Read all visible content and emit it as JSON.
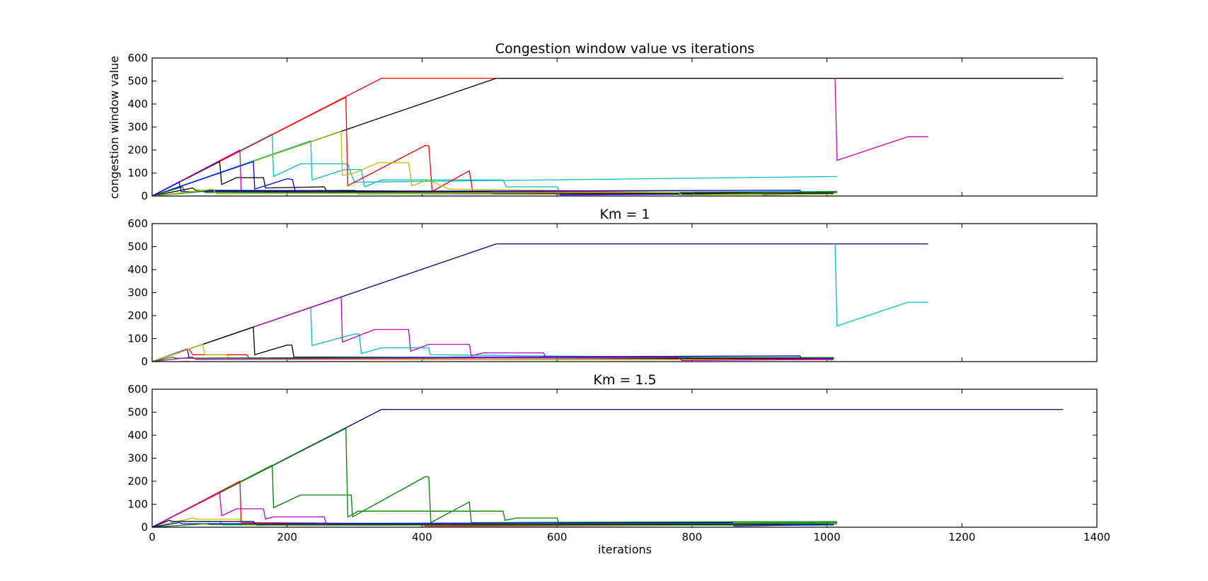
{
  "chart_data": [
    {
      "type": "line",
      "title": "Congestion window value vs iterations",
      "xlabel": "",
      "ylabel": "congestion window value",
      "xlim": [
        0,
        1400
      ],
      "ylim": [
        0,
        600
      ],
      "xticks": [],
      "yticks": [
        0,
        100,
        200,
        300,
        400,
        500,
        600
      ],
      "grid": false,
      "series": [
        {
          "color": "#ff0000",
          "points": [
            [
              0,
              0
            ],
            [
              340,
              512
            ],
            [
              1350,
              512
            ]
          ]
        },
        {
          "color": "#000000",
          "points": [
            [
              0,
              0
            ],
            [
              510,
              512
            ],
            [
              1350,
              512
            ]
          ]
        },
        {
          "color": "#c000c0",
          "points": [
            [
              1010,
              512
            ],
            [
              1012,
              512
            ],
            [
              1015,
              155
            ],
            [
              1120,
              258
            ],
            [
              1150,
              258
            ]
          ]
        },
        {
          "color": "#00bfbf",
          "points": [
            [
              0,
              0
            ],
            [
              178,
              270
            ],
            [
              180,
              85
            ],
            [
              220,
              140
            ],
            [
              290,
              140
            ],
            [
              295,
              95
            ],
            [
              300,
              60
            ],
            [
              1015,
              85
            ]
          ]
        },
        {
          "color": "#00bfbf",
          "points": [
            [
              0,
              0
            ],
            [
              235,
              240
            ],
            [
              237,
              70
            ],
            [
              285,
              115
            ],
            [
              310,
              115
            ],
            [
              315,
              40
            ],
            [
              340,
              70
            ],
            [
              520,
              70
            ],
            [
              525,
              40
            ],
            [
              600,
              40
            ],
            [
              605,
              15
            ],
            [
              1015,
              20
            ]
          ]
        },
        {
          "color": "#ff0000",
          "points": [
            [
              0,
              0
            ],
            [
              287,
              430
            ],
            [
              290,
              45
            ],
            [
              405,
              220
            ],
            [
              410,
              218
            ],
            [
              415,
              20
            ],
            [
              470,
              110
            ],
            [
              475,
              20
            ],
            [
              1015,
              15
            ]
          ]
        },
        {
          "color": "#bfbf00",
          "points": [
            [
              0,
              0
            ],
            [
              280,
              280
            ],
            [
              282,
              90
            ],
            [
              300,
              100
            ],
            [
              335,
              145
            ],
            [
              380,
              145
            ],
            [
              385,
              45
            ],
            [
              410,
              70
            ],
            [
              440,
              30
            ],
            [
              1010,
              10
            ]
          ]
        },
        {
          "color": "#0000ff",
          "points": [
            [
              0,
              0
            ],
            [
              150,
              150
            ],
            [
              152,
              30
            ],
            [
              200,
              75
            ],
            [
              208,
              72
            ],
            [
              212,
              20
            ],
            [
              960,
              25
            ],
            [
              965,
              10
            ],
            [
              1010,
              15
            ]
          ]
        },
        {
          "color": "#000000",
          "points": [
            [
              0,
              0
            ],
            [
              100,
              150
            ],
            [
              103,
              50
            ],
            [
              125,
              80
            ],
            [
              165,
              80
            ],
            [
              168,
              35
            ],
            [
              255,
              40
            ],
            [
              260,
              15
            ],
            [
              1010,
              15
            ]
          ]
        },
        {
          "color": "#c000c0",
          "points": [
            [
              0,
              0
            ],
            [
              130,
              200
            ],
            [
              132,
              20
            ],
            [
              400,
              20
            ],
            [
              405,
              10
            ],
            [
              1010,
              10
            ]
          ]
        },
        {
          "color": "#008000",
          "points": [
            [
              0,
              0
            ],
            [
              45,
              40
            ],
            [
              48,
              20
            ],
            [
              300,
              25
            ],
            [
              305,
              10
            ],
            [
              1015,
              15
            ]
          ]
        },
        {
          "color": "#000000",
          "points": [
            [
              0,
              0
            ],
            [
              60,
              35
            ],
            [
              65,
              25
            ],
            [
              500,
              20
            ],
            [
              505,
              10
            ],
            [
              1010,
              12
            ]
          ]
        },
        {
          "color": "#0000ff",
          "points": [
            [
              0,
              0
            ],
            [
              40,
              60
            ],
            [
              43,
              20
            ],
            [
              600,
              15
            ],
            [
              605,
              5
            ],
            [
              900,
              10
            ],
            [
              905,
              5
            ],
            [
              1010,
              10
            ]
          ]
        },
        {
          "color": "#008000",
          "points": [
            [
              0,
              0
            ],
            [
              75,
              20
            ],
            [
              80,
              15
            ],
            [
              800,
              15
            ],
            [
              805,
              5
            ],
            [
              1015,
              20
            ]
          ]
        },
        {
          "color": "#bfbf00",
          "points": [
            [
              0,
              0
            ],
            [
              90,
              30
            ],
            [
              95,
              10
            ],
            [
              780,
              15
            ],
            [
              785,
              5
            ],
            [
              1010,
              8
            ]
          ]
        }
      ]
    },
    {
      "type": "line",
      "title": "Km = 1",
      "xlabel": "",
      "ylabel": "",
      "xlim": [
        0,
        1400
      ],
      "ylim": [
        0,
        600
      ],
      "xticks": [],
      "yticks": [
        0,
        100,
        200,
        300,
        400,
        500,
        600
      ],
      "grid": false,
      "series": [
        {
          "color": "#000080",
          "points": [
            [
              0,
              0
            ],
            [
              510,
              512
            ],
            [
              1150,
              512
            ]
          ]
        },
        {
          "color": "#00bfbf",
          "points": [
            [
              1012,
              512
            ],
            [
              1015,
              155
            ],
            [
              1120,
              258
            ],
            [
              1150,
              258
            ]
          ]
        },
        {
          "color": "#00bfbf",
          "points": [
            [
              0,
              0
            ],
            [
              235,
              235
            ],
            [
              237,
              70
            ],
            [
              300,
              120
            ],
            [
              307,
              120
            ],
            [
              310,
              35
            ],
            [
              340,
              60
            ],
            [
              410,
              60
            ],
            [
              412,
              30
            ],
            [
              1010,
              12
            ]
          ]
        },
        {
          "color": "#c000c0",
          "points": [
            [
              0,
              0
            ],
            [
              280,
              280
            ],
            [
              282,
              85
            ],
            [
              330,
              140
            ],
            [
              380,
              140
            ],
            [
              383,
              45
            ],
            [
              410,
              75
            ],
            [
              470,
              75
            ],
            [
              473,
              25
            ],
            [
              490,
              38
            ],
            [
              580,
              38
            ],
            [
              583,
              18
            ],
            [
              1010,
              15
            ]
          ]
        },
        {
          "color": "#000000",
          "points": [
            [
              0,
              0
            ],
            [
              150,
              150
            ],
            [
              152,
              30
            ],
            [
              200,
              72
            ],
            [
              207,
              72
            ],
            [
              210,
              20
            ],
            [
              1010,
              12
            ]
          ]
        },
        {
          "color": "#0000ff",
          "points": [
            [
              0,
              0
            ],
            [
              52,
              55
            ],
            [
              55,
              15
            ],
            [
              960,
              25
            ],
            [
              963,
              10
            ],
            [
              1010,
              14
            ]
          ]
        },
        {
          "color": "#ff0000",
          "points": [
            [
              0,
              0
            ],
            [
              55,
              55
            ],
            [
              60,
              30
            ],
            [
              140,
              30
            ],
            [
              145,
              10
            ],
            [
              1010,
              10
            ]
          ]
        },
        {
          "color": "#bfbf00",
          "points": [
            [
              0,
              0
            ],
            [
              75,
              75
            ],
            [
              78,
              30
            ],
            [
              110,
              30
            ],
            [
              115,
              10
            ],
            [
              1010,
              8
            ]
          ]
        },
        {
          "color": "#008000",
          "points": [
            [
              0,
              0
            ],
            [
              30,
              20
            ],
            [
              35,
              15
            ],
            [
              1010,
              18
            ]
          ]
        },
        {
          "color": "#c000c0",
          "points": [
            [
              0,
              0
            ],
            [
              60,
              20
            ],
            [
              65,
              10
            ],
            [
              780,
              20
            ],
            [
              785,
              5
            ],
            [
              1010,
              10
            ]
          ]
        }
      ]
    },
    {
      "type": "line",
      "title": "Km = 1.5",
      "xlabel": "iterations",
      "ylabel": "",
      "xlim": [
        0,
        1400
      ],
      "ylim": [
        0,
        600
      ],
      "xticks": [
        0,
        200,
        400,
        600,
        800,
        1000,
        1200,
        1400
      ],
      "yticks": [
        0,
        100,
        200,
        300,
        400,
        500,
        600
      ],
      "grid": false,
      "series": [
        {
          "color": "#000080",
          "points": [
            [
              0,
              0
            ],
            [
              340,
              512
            ],
            [
              1350,
              512
            ]
          ]
        },
        {
          "color": "#008000",
          "points": [
            [
              0,
              0
            ],
            [
              178,
              270
            ],
            [
              180,
              85
            ],
            [
              220,
              140
            ],
            [
              295,
              140
            ],
            [
              297,
              45
            ],
            [
              405,
              220
            ],
            [
              410,
              218
            ],
            [
              413,
              20
            ],
            [
              470,
              110
            ],
            [
              473,
              20
            ],
            [
              1015,
              25
            ]
          ]
        },
        {
          "color": "#008000",
          "points": [
            [
              0,
              0
            ],
            [
              287,
              430
            ],
            [
              290,
              45
            ],
            [
              300,
              60
            ],
            [
              305,
              70
            ],
            [
              520,
              70
            ],
            [
              523,
              30
            ],
            [
              540,
              40
            ],
            [
              600,
              40
            ],
            [
              603,
              15
            ],
            [
              1015,
              20
            ]
          ]
        },
        {
          "color": "#ff0000",
          "points": [
            [
              0,
              0
            ],
            [
              130,
              200
            ],
            [
              132,
              20
            ],
            [
              400,
              15
            ],
            [
              405,
              5
            ],
            [
              1010,
              10
            ]
          ]
        },
        {
          "color": "#c000c0",
          "points": [
            [
              0,
              0
            ],
            [
              100,
              150
            ],
            [
              103,
              50
            ],
            [
              125,
              80
            ],
            [
              165,
              80
            ],
            [
              168,
              35
            ],
            [
              180,
              45
            ],
            [
              255,
              45
            ],
            [
              258,
              15
            ],
            [
              1010,
              10
            ]
          ]
        },
        {
          "color": "#00bfbf",
          "points": [
            [
              0,
              0
            ],
            [
              45,
              30
            ],
            [
              50,
              25
            ],
            [
              100,
              25
            ],
            [
              105,
              10
            ],
            [
              1010,
              8
            ]
          ]
        },
        {
          "color": "#bfbf00",
          "points": [
            [
              0,
              0
            ],
            [
              60,
              40
            ],
            [
              65,
              35
            ],
            [
              130,
              35
            ],
            [
              135,
              10
            ],
            [
              1010,
              10
            ]
          ]
        },
        {
          "color": "#000000",
          "points": [
            [
              0,
              0
            ],
            [
              25,
              30
            ],
            [
              30,
              25
            ],
            [
              150,
              25
            ],
            [
              155,
              10
            ],
            [
              1010,
              12
            ]
          ]
        },
        {
          "color": "#0000ff",
          "points": [
            [
              0,
              0
            ],
            [
              40,
              20
            ],
            [
              45,
              15
            ],
            [
              860,
              20
            ],
            [
              863,
              5
            ],
            [
              1010,
              12
            ]
          ]
        },
        {
          "color": "#008000",
          "points": [
            [
              0,
              0
            ],
            [
              80,
              15
            ],
            [
              85,
              12
            ],
            [
              1015,
              15
            ]
          ]
        }
      ]
    }
  ]
}
